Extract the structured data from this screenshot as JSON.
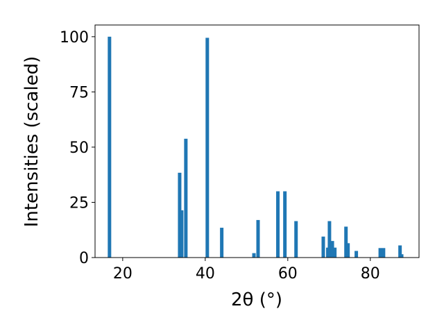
{
  "chart_data": {
    "type": "bar",
    "xlabel": "2θ (°)",
    "ylabel": "Intensities (scaled)",
    "color": "#1f77b4",
    "x": [
      16.8,
      33.8,
      34.3,
      35.3,
      40.5,
      44.0,
      51.8,
      52.8,
      57.6,
      59.3,
      62.0,
      68.6,
      69.7,
      70.1,
      70.8,
      71.4,
      74.1,
      74.6,
      76.6,
      82.4,
      83.2,
      87.2,
      87.6
    ],
    "values": [
      100,
      38.4,
      21.4,
      53.8,
      99.5,
      13.5,
      2,
      17,
      30,
      30,
      16.5,
      9.5,
      4.5,
      16.5,
      7.5,
      4.5,
      14,
      6.5,
      3,
      4.3,
      4.3,
      5.5,
      1.5
    ],
    "xlim": [
      13.3,
      91.8
    ],
    "ylim": [
      0,
      105.3
    ],
    "xticks": [
      20,
      40,
      60,
      80
    ],
    "yticks": [
      0,
      25,
      50,
      75,
      100
    ]
  }
}
